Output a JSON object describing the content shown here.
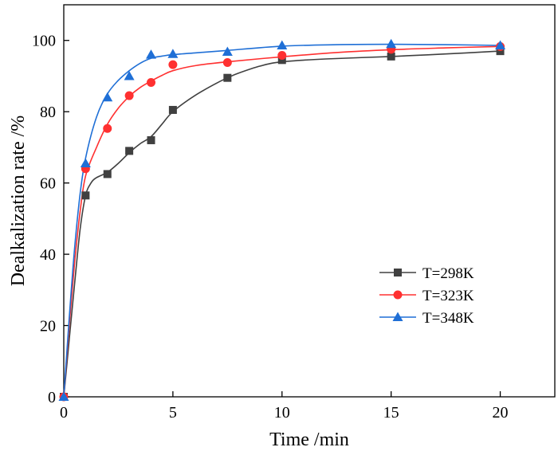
{
  "chart_data": {
    "type": "line",
    "title": "",
    "xlabel": "Time /min",
    "ylabel": "Dealkalization rate /%",
    "xlim": [
      0,
      22.5
    ],
    "ylim": [
      0,
      110
    ],
    "xticks": [
      0,
      5,
      10,
      15,
      20
    ],
    "yticks": [
      0,
      20,
      40,
      60,
      80,
      100
    ],
    "xtick_labels": [
      "0",
      "5",
      "10",
      "15",
      "20"
    ],
    "ytick_labels": [
      "0",
      "20",
      "40",
      "60",
      "80",
      "100"
    ],
    "grid": false,
    "legend_position": "center-right",
    "series": [
      {
        "name": "T=298K",
        "color": "#404040",
        "marker": "square",
        "x": [
          0,
          1,
          2,
          3,
          4,
          5,
          7.5,
          10,
          15,
          20
        ],
        "y": [
          0,
          56.5,
          62.5,
          69.0,
          72.0,
          80.5,
          89.5,
          94.5,
          95.5,
          97.0
        ],
        "fit_x": [
          0,
          0.25,
          0.5,
          0.75,
          1,
          1.25,
          1.5,
          2,
          2.5,
          3,
          3.5,
          4,
          4.5,
          5,
          6,
          7,
          7.5,
          8,
          9,
          10,
          12,
          15,
          17.5,
          20
        ],
        "fit_y": [
          0,
          16,
          32,
          47,
          56.5,
          60,
          61.5,
          63,
          65.5,
          68.5,
          71,
          73,
          76.5,
          80,
          84.5,
          88,
          89.5,
          90.8,
          92.8,
          94,
          94.8,
          95.5,
          96.2,
          97
        ]
      },
      {
        "name": "T=323K",
        "color": "#ff3030",
        "marker": "circle",
        "x": [
          0,
          1,
          2,
          3,
          4,
          5,
          7.5,
          10,
          15,
          20
        ],
        "y": [
          0,
          64.0,
          75.3,
          84.5,
          88.2,
          93.2,
          93.8,
          95.8,
          97.5,
          98.3
        ],
        "fit_x": [
          0,
          0.25,
          0.5,
          0.75,
          1,
          1.5,
          2,
          2.5,
          3,
          3.5,
          4,
          4.5,
          5,
          6,
          7.5,
          10,
          12.5,
          15,
          17.5,
          20
        ],
        "fit_y": [
          0,
          20,
          38,
          52,
          62,
          70,
          76.5,
          81,
          84.3,
          86.8,
          88.6,
          90.2,
          91.5,
          92.9,
          94.0,
          95.4,
          96.6,
          97.4,
          97.9,
          98.3
        ]
      },
      {
        "name": "T=348K",
        "color": "#1f6fd6",
        "marker": "triangle",
        "x": [
          0,
          1,
          2,
          3,
          4,
          5,
          7.5,
          10,
          15,
          20
        ],
        "y": [
          0,
          65.5,
          84.0,
          90.0,
          96.0,
          96.2,
          96.8,
          98.6,
          99.0,
          98.6
        ],
        "fit_x": [
          0,
          0.25,
          0.5,
          0.75,
          1,
          1.5,
          2,
          2.5,
          3,
          3.5,
          4,
          4.5,
          5,
          6,
          7.5,
          10,
          12.5,
          15,
          17.5,
          20
        ],
        "fit_y": [
          0,
          22,
          42,
          57,
          67,
          78.5,
          85,
          88.8,
          91.5,
          93.6,
          95.0,
          95.6,
          96.0,
          96.5,
          97.2,
          98.4,
          98.8,
          98.9,
          98.8,
          98.6
        ]
      }
    ]
  }
}
